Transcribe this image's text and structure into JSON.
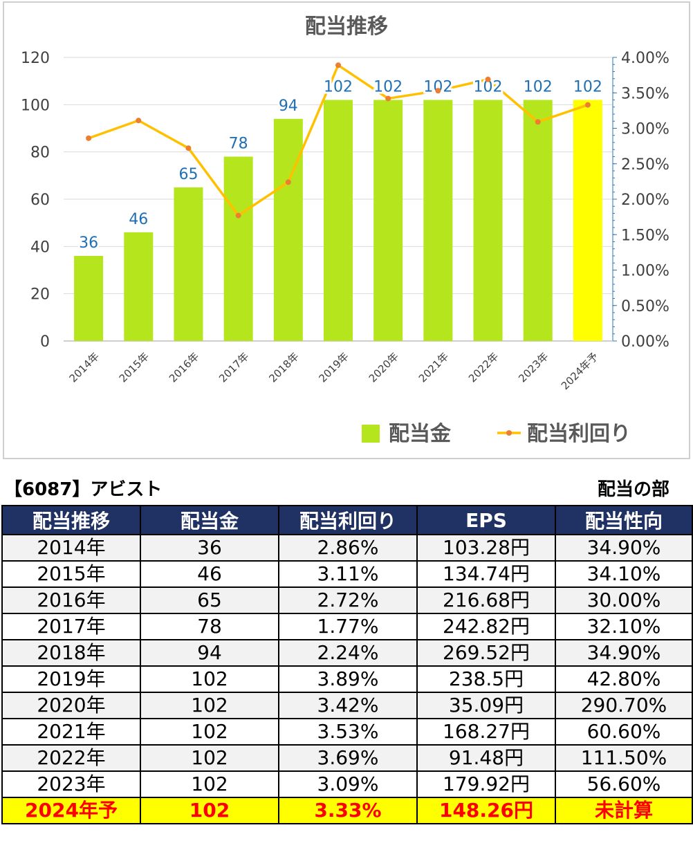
{
  "chart_data": {
    "type": "bar",
    "title": "配当推移",
    "categories": [
      "2014年",
      "2015年",
      "2016年",
      "2017年",
      "2018年",
      "2019年",
      "2020年",
      "2021年",
      "2022年",
      "2023年",
      "2024年予"
    ],
    "series": [
      {
        "name": "配当金",
        "type": "bar",
        "axis": "left",
        "values": [
          36,
          46,
          65,
          78,
          94,
          102,
          102,
          102,
          102,
          102,
          102
        ],
        "color": "#b5e61d",
        "forecast_color": "#ffff00"
      },
      {
        "name": "配当利回り",
        "type": "line",
        "axis": "right",
        "values": [
          2.86,
          3.11,
          2.72,
          1.77,
          2.24,
          3.89,
          3.42,
          3.53,
          3.69,
          3.09,
          3.33
        ],
        "color": "#ffc000",
        "marker_color": "#ed7d31"
      }
    ],
    "left_axis": {
      "ylim": [
        0,
        120
      ],
      "ticks": [
        "0",
        "20",
        "40",
        "60",
        "80",
        "100",
        "120"
      ]
    },
    "right_axis": {
      "ylim": [
        0,
        4
      ],
      "ticks": [
        "0.00%",
        "0.50%",
        "1.00%",
        "1.50%",
        "2.00%",
        "2.50%",
        "3.00%",
        "3.50%",
        "4.00%"
      ]
    },
    "data_label_color": "#1f6fb5",
    "grid": true,
    "legend_position": "bottom-right"
  },
  "caption": {
    "left": "【6087】アビスト",
    "right": "配当の部"
  },
  "table": {
    "headers": [
      "配当推移",
      "配当金",
      "配当利回り",
      "EPS",
      "配当性向"
    ],
    "rows": [
      [
        "2014年",
        "36",
        "2.86%",
        "103.28円",
        "34.90%"
      ],
      [
        "2015年",
        "46",
        "3.11%",
        "134.74円",
        "34.10%"
      ],
      [
        "2016年",
        "65",
        "2.72%",
        "216.68円",
        "30.00%"
      ],
      [
        "2017年",
        "78",
        "1.77%",
        "242.82円",
        "32.10%"
      ],
      [
        "2018年",
        "94",
        "2.24%",
        "269.52円",
        "34.90%"
      ],
      [
        "2019年",
        "102",
        "3.89%",
        "238.5円",
        "42.80%"
      ],
      [
        "2020年",
        "102",
        "3.42%",
        "35.09円",
        "290.70%"
      ],
      [
        "2021年",
        "102",
        "3.53%",
        "168.27円",
        "60.60%"
      ],
      [
        "2022年",
        "102",
        "3.69%",
        "91.48円",
        "111.50%"
      ],
      [
        "2023年",
        "102",
        "3.09%",
        "179.92円",
        "56.60%"
      ],
      [
        "2024年予",
        "102",
        "3.33%",
        "148.26円",
        "未計算"
      ]
    ]
  }
}
